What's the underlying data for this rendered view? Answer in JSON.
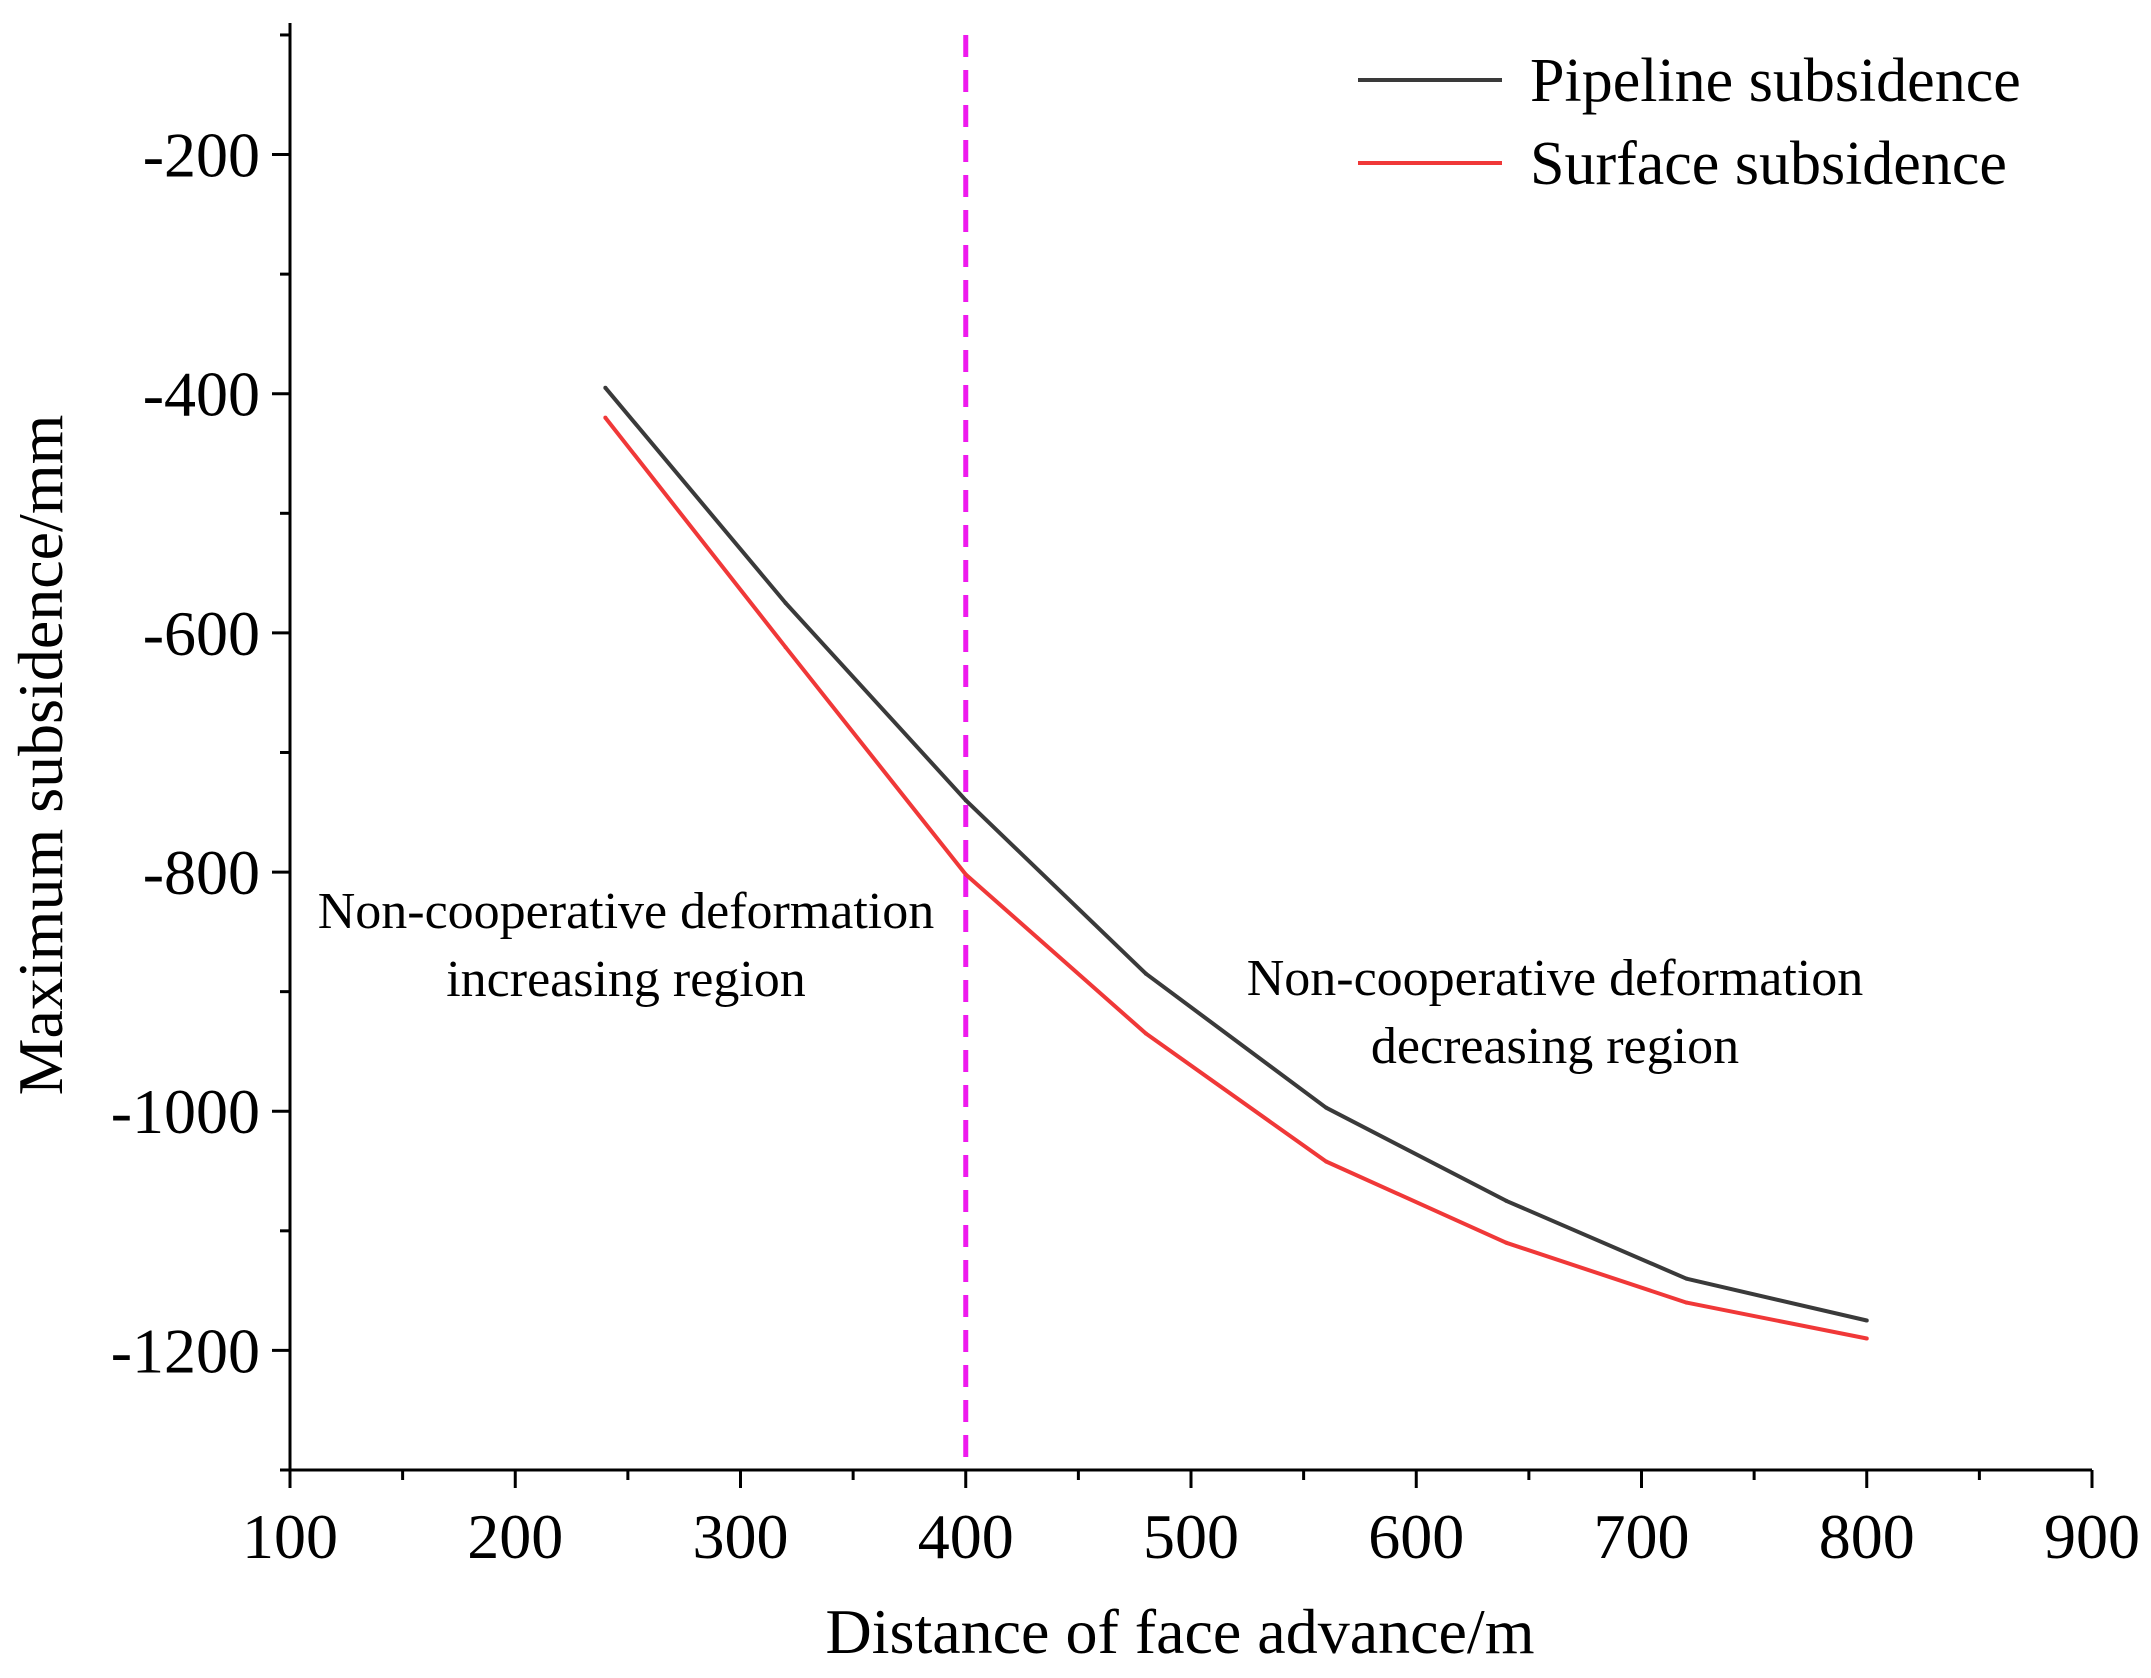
{
  "chart_data": {
    "type": "line",
    "title": "",
    "xlabel": "Distance of face advance/m",
    "ylabel": "Maximum subsidence/mm",
    "xlim": [
      100,
      900
    ],
    "ylim": [
      -1300,
      -90
    ],
    "x_ticks": [
      100,
      200,
      300,
      400,
      500,
      600,
      700,
      800,
      900
    ],
    "x_tick_labels": [
      "100",
      "200",
      "300",
      "400",
      "500",
      "600",
      "700",
      "800",
      "900"
    ],
    "y_ticks": [
      -200,
      -400,
      -600,
      -800,
      -1000,
      -1200
    ],
    "y_tick_labels": [
      "-200",
      "-400",
      "-600",
      "-800",
      "-1000",
      "-1200"
    ],
    "x_minor_step": 50,
    "y_minor_step": 100,
    "legend_position": "top-right",
    "series": [
      {
        "name": "Pipeline subsidence",
        "color": "#3a3a3a",
        "x": [
          240,
          320,
          400,
          480,
          560,
          640,
          720,
          800
        ],
        "values": [
          -395,
          -575,
          -740,
          -885,
          -997,
          -1075,
          -1140,
          -1175
        ]
      },
      {
        "name": "Surface subsidence",
        "color": "#f03838",
        "x": [
          240,
          320,
          400,
          480,
          560,
          640,
          720,
          800
        ],
        "values": [
          -420,
          -612,
          -802,
          -935,
          -1042,
          -1110,
          -1160,
          -1190
        ]
      }
    ],
    "reference_line": {
      "x": 400,
      "color": "#ee1aee",
      "style": "dashed"
    },
    "annotations": [
      {
        "lines": [
          "Non-cooperative deformation",
          "increasing region"
        ]
      },
      {
        "lines": [
          "Non-cooperative deformation",
          "decreasing region"
        ]
      }
    ]
  }
}
